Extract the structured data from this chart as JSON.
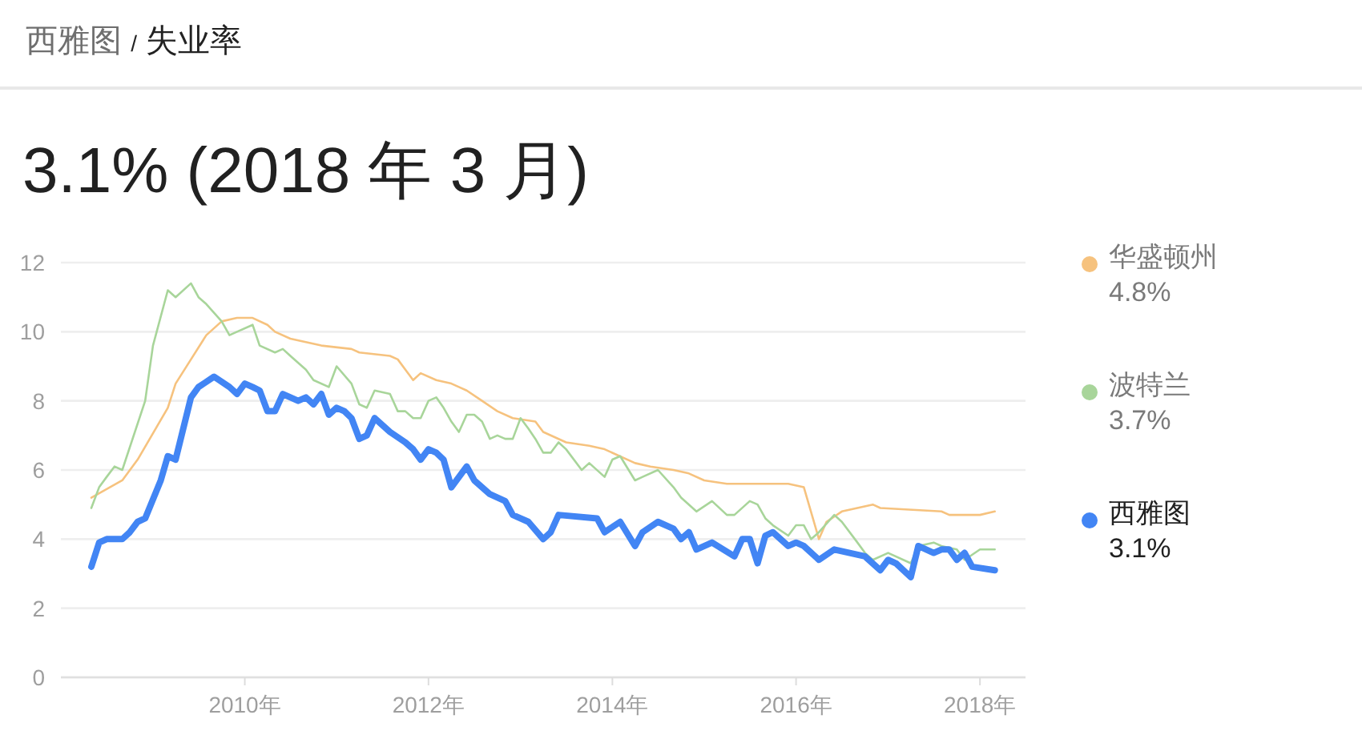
{
  "chart_data": {
    "type": "line",
    "title": "西雅图 / 失业率",
    "subtitle": "3.1% (2018 年 3 月)",
    "annotations": [
      "4.8%",
      "3.7%",
      "3.1%"
    ],
    "series": [
      {
        "name": "华盛顿州",
        "color": "#f6c27e",
        "x": [
          "2008-05",
          "2008-09",
          "2008-11",
          "2009-03",
          "2009-04",
          "2009-06",
          "2009-08",
          "2009-10",
          "2009-12",
          "2010-02",
          "2010-04",
          "2010-05",
          "2010-07",
          "2010-11",
          "2011-03",
          "2011-04",
          "2011-08",
          "2011-09",
          "2011-11",
          "2011-12",
          "2012-02",
          "2012-04",
          "2012-05",
          "2012-06",
          "2012-08",
          "2012-10",
          "2012-12",
          "2013-03",
          "2013-04",
          "2013-07",
          "2013-10",
          "2013-12",
          "2014-04",
          "2014-06",
          "2014-09",
          "2014-11",
          "2015-01",
          "2015-04",
          "2015-12",
          "2016-02",
          "2016-04",
          "2016-05",
          "2016-07",
          "2016-11",
          "2016-12",
          "2017-08",
          "2017-09",
          "2018-01",
          "2018-03"
        ],
        "values": [
          5.2,
          5.7,
          6.3,
          7.8,
          8.5,
          9.2,
          9.9,
          10.3,
          10.4,
          10.4,
          10.2,
          10.0,
          9.8,
          9.6,
          9.5,
          9.4,
          9.3,
          9.2,
          8.6,
          8.8,
          8.6,
          8.5,
          8.4,
          8.3,
          8.0,
          7.7,
          7.5,
          7.4,
          7.1,
          6.8,
          6.7,
          6.6,
          6.2,
          6.1,
          6.0,
          5.9,
          5.7,
          5.6,
          5.6,
          5.5,
          4.0,
          4.5,
          4.8,
          5.0,
          4.9,
          4.8,
          4.7,
          4.7,
          4.8
        ]
      },
      {
        "name": "波特兰",
        "color": "#a8d59a",
        "x": [
          "2008-05",
          "2008-06",
          "2008-07",
          "2008-08",
          "2008-09",
          "2008-12",
          "2009-01",
          "2009-03",
          "2009-04",
          "2009-06",
          "2009-07",
          "2009-08",
          "2009-10",
          "2009-11",
          "2009-12",
          "2010-02",
          "2010-03",
          "2010-05",
          "2010-06",
          "2010-07",
          "2010-09",
          "2010-10",
          "2010-12",
          "2011-01",
          "2011-03",
          "2011-04",
          "2011-05",
          "2011-06",
          "2011-08",
          "2011-09",
          "2011-10",
          "2011-11",
          "2011-12",
          "2012-01",
          "2012-02",
          "2012-03",
          "2012-04",
          "2012-05",
          "2012-06",
          "2012-07",
          "2012-08",
          "2012-09",
          "2012-10",
          "2012-11",
          "2012-12",
          "2013-01",
          "2013-02",
          "2013-03",
          "2013-04",
          "2013-05",
          "2013-06",
          "2013-07",
          "2013-09",
          "2013-10",
          "2013-12",
          "2014-01",
          "2014-02",
          "2014-04",
          "2014-05",
          "2014-07",
          "2014-09",
          "2014-10",
          "2014-12",
          "2015-02",
          "2015-04",
          "2015-05",
          "2015-07",
          "2015-08",
          "2015-09",
          "2015-10",
          "2015-12",
          "2016-01",
          "2016-02",
          "2016-03",
          "2016-04",
          "2016-06",
          "2016-07",
          "2016-09",
          "2016-10",
          "2016-11",
          "2017-01",
          "2017-04",
          "2017-05",
          "2017-07",
          "2017-08",
          "2017-10",
          "2017-11",
          "2018-01",
          "2018-03"
        ],
        "values": [
          4.9,
          5.5,
          5.8,
          6.1,
          6.0,
          8.0,
          9.6,
          11.2,
          11.0,
          11.4,
          11.0,
          10.8,
          10.3,
          9.9,
          10.0,
          10.2,
          9.6,
          9.4,
          9.5,
          9.3,
          8.9,
          8.6,
          8.4,
          9.0,
          8.5,
          7.9,
          7.8,
          8.3,
          8.2,
          7.7,
          7.7,
          7.5,
          7.5,
          8.0,
          8.1,
          7.8,
          7.4,
          7.1,
          7.6,
          7.6,
          7.4,
          6.9,
          7.0,
          6.9,
          6.9,
          7.5,
          7.2,
          6.9,
          6.5,
          6.5,
          6.8,
          6.6,
          6.0,
          6.2,
          5.8,
          6.3,
          6.4,
          5.7,
          5.8,
          6.0,
          5.5,
          5.2,
          4.8,
          5.1,
          4.7,
          4.7,
          5.1,
          5.0,
          4.6,
          4.4,
          4.1,
          4.4,
          4.4,
          4.0,
          4.2,
          4.7,
          4.5,
          3.9,
          3.6,
          3.4,
          3.6,
          3.3,
          3.8,
          3.9,
          3.8,
          3.7,
          3.4,
          3.7,
          3.7
        ]
      },
      {
        "name": "西雅图",
        "color": "#4285f4",
        "x": [
          "2008-05",
          "2008-06",
          "2008-07",
          "2008-09",
          "2008-10",
          "2008-11",
          "2008-12",
          "2009-02",
          "2009-03",
          "2009-04",
          "2009-06",
          "2009-07",
          "2009-09",
          "2009-11",
          "2009-12",
          "2010-01",
          "2010-02",
          "2010-03",
          "2010-04",
          "2010-05",
          "2010-06",
          "2010-08",
          "2010-09",
          "2010-10",
          "2010-11",
          "2010-12",
          "2011-01",
          "2011-02",
          "2011-03",
          "2011-04",
          "2011-05",
          "2011-06",
          "2011-08",
          "2011-10",
          "2011-11",
          "2011-12",
          "2012-01",
          "2012-02",
          "2012-03",
          "2012-04",
          "2012-06",
          "2012-07",
          "2012-09",
          "2012-11",
          "2012-12",
          "2013-02",
          "2013-04",
          "2013-05",
          "2013-06",
          "2013-11",
          "2013-12",
          "2014-02",
          "2014-04",
          "2014-05",
          "2014-07",
          "2014-09",
          "2014-10",
          "2014-11",
          "2014-12",
          "2015-02",
          "2015-05",
          "2015-06",
          "2015-07",
          "2015-08",
          "2015-09",
          "2015-10",
          "2015-12",
          "2016-01",
          "2016-02",
          "2016-04",
          "2016-06",
          "2016-10",
          "2016-12",
          "2017-01",
          "2017-02",
          "2017-04",
          "2017-05",
          "2017-07",
          "2017-08",
          "2017-09",
          "2017-10",
          "2017-11",
          "2017-12",
          "2018-03"
        ],
        "values": [
          3.2,
          3.9,
          4.0,
          4.0,
          4.2,
          4.5,
          4.6,
          5.7,
          6.4,
          6.3,
          8.1,
          8.4,
          8.7,
          8.4,
          8.2,
          8.5,
          8.4,
          8.3,
          7.7,
          7.7,
          8.2,
          8.0,
          8.1,
          7.9,
          8.2,
          7.6,
          7.8,
          7.7,
          7.5,
          6.9,
          7.0,
          7.5,
          7.1,
          6.8,
          6.6,
          6.3,
          6.6,
          6.5,
          6.3,
          5.5,
          6.1,
          5.7,
          5.3,
          5.1,
          4.7,
          4.5,
          4.0,
          4.2,
          4.7,
          4.6,
          4.2,
          4.5,
          3.8,
          4.2,
          4.5,
          4.3,
          4.0,
          4.2,
          3.7,
          3.9,
          3.5,
          4.0,
          4.0,
          3.3,
          4.1,
          4.2,
          3.8,
          3.9,
          3.8,
          3.4,
          3.7,
          3.5,
          3.1,
          3.4,
          3.3,
          2.9,
          3.8,
          3.6,
          3.7,
          3.7,
          3.4,
          3.6,
          3.2,
          3.1
        ]
      }
    ],
    "xlim": [
      "2008-01",
      "2018-07"
    ],
    "xticks": [
      {
        "value": "2010-01",
        "label": "2010年"
      },
      {
        "value": "2012-01",
        "label": "2012年"
      },
      {
        "value": "2014-01",
        "label": "2014年"
      },
      {
        "value": "2016-01",
        "label": "2016年"
      },
      {
        "value": "2018-01",
        "label": "2018年"
      }
    ],
    "ylim": [
      0,
      12
    ],
    "yticks": [
      0,
      2,
      4,
      6,
      8,
      10,
      12
    ],
    "grid": "y",
    "legend": "right"
  }
}
